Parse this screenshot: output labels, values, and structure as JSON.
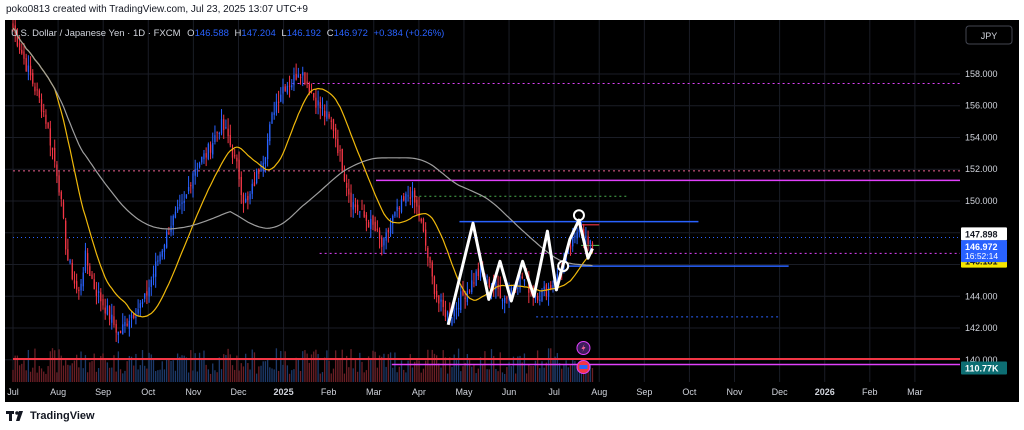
{
  "header": {
    "attribution": "poko0813 created with TradingView.com, Jul 23, 2025 13:07 UTC+9"
  },
  "footer": {
    "brand": "TradingView"
  },
  "currency_button": "JPY",
  "colors": {
    "up": "#2962ff",
    "down": "#f23645",
    "ma_fast": "#f0b90b",
    "ma_slow": "#9e9e9e",
    "magenta": "#e040fb",
    "pink": "#f06292",
    "green": "#4caf50",
    "blue": "#2962ff",
    "white": "#ffffff",
    "background": "#000000"
  },
  "chart_data": {
    "type": "candlestick",
    "symbol": "U.S. Dollar / Japanese Yen",
    "interval": "1D",
    "source": "FXCM",
    "ohlc": {
      "O": "146.588",
      "H": "147.204",
      "L": "146.192",
      "C": "146.972",
      "change": "+0.384 (+0.26%)"
    },
    "y_ticks": [
      "158.000",
      "156.000",
      "154.000",
      "152.000",
      "150.000",
      "148.000",
      "146.000",
      "144.000",
      "142.000",
      "140.000"
    ],
    "y_tick_values": [
      158,
      156,
      154,
      152,
      150,
      148,
      146,
      144,
      142,
      140
    ],
    "ylim": [
      138.6,
      161.4
    ],
    "x_ticks": [
      {
        "label": "Jul",
        "t": 0
      },
      {
        "label": "Aug",
        "t": 1
      },
      {
        "label": "Sep",
        "t": 2
      },
      {
        "label": "Oct",
        "t": 3
      },
      {
        "label": "Nov",
        "t": 4
      },
      {
        "label": "Dec",
        "t": 5
      },
      {
        "label": "2025",
        "t": 6
      },
      {
        "label": "Feb",
        "t": 7
      },
      {
        "label": "Mar",
        "t": 8
      },
      {
        "label": "Apr",
        "t": 9
      },
      {
        "label": "May",
        "t": 10
      },
      {
        "label": "Jun",
        "t": 11
      },
      {
        "label": "Jul",
        "t": 12
      },
      {
        "label": "Aug",
        "t": 13
      },
      {
        "label": "Sep",
        "t": 14
      },
      {
        "label": "Oct",
        "t": 15
      },
      {
        "label": "Nov",
        "t": 16
      },
      {
        "label": "Dec",
        "t": 17
      },
      {
        "label": "2026",
        "t": 18
      },
      {
        "label": "Feb",
        "t": 19
      },
      {
        "label": "Mar",
        "t": 20
      }
    ],
    "xlim": [
      0,
      21
    ],
    "close_anchors": [
      [
        0,
        160.9
      ],
      [
        0.3,
        158.5
      ],
      [
        0.7,
        155.5
      ],
      [
        1.0,
        151.5
      ],
      [
        1.2,
        146.5
      ],
      [
        1.45,
        144.0
      ],
      [
        1.6,
        146.5
      ],
      [
        1.8,
        144.6
      ],
      [
        2.1,
        143.0
      ],
      [
        2.35,
        141.6
      ],
      [
        2.6,
        142.8
      ],
      [
        2.9,
        143.6
      ],
      [
        3.2,
        146.2
      ],
      [
        3.5,
        148.6
      ],
      [
        3.8,
        149.8
      ],
      [
        4.0,
        152.0
      ],
      [
        4.3,
        153.0
      ],
      [
        4.6,
        154.8
      ],
      [
        4.75,
        154.2
      ],
      [
        5.0,
        151.8
      ],
      [
        5.1,
        150.2
      ],
      [
        5.2,
        149.8
      ],
      [
        5.4,
        151.6
      ],
      [
        5.6,
        153.2
      ],
      [
        5.8,
        156.0
      ],
      [
        6.0,
        157.3
      ],
      [
        6.2,
        157.5
      ],
      [
        6.35,
        158.4
      ],
      [
        6.5,
        157.6
      ],
      [
        6.7,
        156.4
      ],
      [
        6.9,
        155.5
      ],
      [
        7.1,
        154.7
      ],
      [
        7.3,
        152.2
      ],
      [
        7.5,
        150.0
      ],
      [
        7.75,
        149.1
      ],
      [
        8.0,
        148.3
      ],
      [
        8.2,
        147.0
      ],
      [
        8.4,
        148.8
      ],
      [
        8.6,
        149.6
      ],
      [
        8.8,
        150.6
      ],
      [
        9.0,
        149.2
      ],
      [
        9.15,
        147.2
      ],
      [
        9.3,
        145.0
      ],
      [
        9.45,
        143.5
      ],
      [
        9.7,
        142.6
      ],
      [
        9.9,
        143.8
      ],
      [
        10.1,
        144.5
      ],
      [
        10.3,
        145.5
      ],
      [
        10.5,
        145.0
      ],
      [
        10.7,
        144.6
      ],
      [
        10.9,
        143.9
      ],
      [
        11.1,
        144.7
      ],
      [
        11.3,
        145.2
      ],
      [
        11.5,
        144.3
      ],
      [
        11.7,
        144.1
      ],
      [
        11.9,
        144.6
      ],
      [
        12.1,
        145.3
      ],
      [
        12.3,
        146.8
      ],
      [
        12.45,
        147.4
      ],
      [
        12.55,
        148.6
      ],
      [
        12.65,
        148.1
      ],
      [
        12.75,
        147.2
      ],
      [
        12.85,
        146.97
      ]
    ],
    "candle_end_t": 12.85,
    "current_price": "146.972",
    "countdown": "16:52:14",
    "price_tags": [
      {
        "label": "147.898",
        "value": 147.898,
        "bg": "#ffffff",
        "fg": "#131722"
      },
      {
        "label": "146.181",
        "value": 146.181,
        "bg": "#f5e500",
        "fg": "#131722"
      }
    ],
    "volume_tag": "110.77K",
    "horizontal_lines": [
      {
        "value": 157.4,
        "t0": 6.2,
        "t1": 21,
        "color": "#e040fb",
        "dash": "2,3",
        "w": 1
      },
      {
        "value": 151.9,
        "t0": 0,
        "t1": 21,
        "color": "#f06292",
        "dash": "2,3",
        "w": 1
      },
      {
        "value": 151.3,
        "t0": 8.05,
        "t1": 21,
        "color": "#e040fb",
        "dash": "",
        "w": 1.5
      },
      {
        "value": 150.3,
        "t0": 8.9,
        "t1": 13.6,
        "color": "#4caf50",
        "dash": "2,3",
        "w": 1
      },
      {
        "value": 148.7,
        "t0": 9.9,
        "t1": 15.2,
        "color": "#2962ff",
        "dash": "",
        "w": 1.5
      },
      {
        "value": 147.7,
        "t0": 0,
        "t1": 21,
        "color": "#2962ff",
        "dash": "1,3",
        "w": 1
      },
      {
        "value": 146.7,
        "t0": 6.8,
        "t1": 21,
        "color": "#e040fb",
        "dash": "2,3",
        "w": 1
      },
      {
        "value": 145.9,
        "t0": 12.3,
        "t1": 17.2,
        "color": "#2962ff",
        "dash": "",
        "w": 1.5
      },
      {
        "value": 142.7,
        "t0": 11.6,
        "t1": 17.0,
        "color": "#2962ff",
        "dash": "2,3",
        "w": 1
      },
      {
        "value": 140.05,
        "t0": 0,
        "t1": 21,
        "color": "#f23645",
        "dash": "",
        "w": 2
      },
      {
        "value": 139.7,
        "t0": 8.4,
        "t1": 21,
        "color": "#e040fb",
        "dash": "",
        "w": 1.5
      },
      {
        "value": 148.5,
        "t0": 12.5,
        "t1": 13.0,
        "color": "#f23645",
        "dash": "",
        "w": 1.2
      },
      {
        "value": 147.2,
        "t0": 12.6,
        "t1": 13.0,
        "color": "#4caf50",
        "dash": "",
        "w": 1.2
      }
    ],
    "zigzag": [
      [
        9.65,
        142.2
      ],
      [
        10.2,
        148.6
      ],
      [
        10.55,
        143.8
      ],
      [
        10.8,
        146.2
      ],
      [
        11.05,
        143.7
      ],
      [
        11.3,
        146.2
      ],
      [
        11.55,
        144.0
      ],
      [
        11.85,
        148.1
      ],
      [
        12.05,
        144.4
      ],
      [
        12.35,
        147.6
      ],
      [
        12.55,
        148.8
      ],
      [
        12.75,
        146.4
      ],
      [
        12.85,
        147.0
      ]
    ],
    "markers": [
      [
        12.55,
        149.1
      ],
      [
        12.2,
        145.9
      ]
    ],
    "event_icons": [
      {
        "t": 12.65,
        "kind": "flash"
      },
      {
        "t": 12.65,
        "kind": "flag"
      }
    ]
  }
}
